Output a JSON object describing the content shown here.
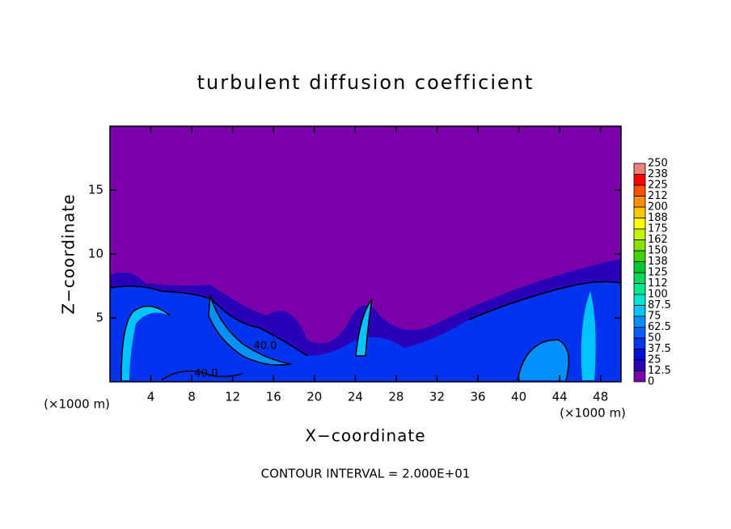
{
  "chart_data": {
    "type": "contour",
    "title": "turbulent diffusion coefficient",
    "xlabel": "X−coordinate",
    "ylabel": "Z−coordinate",
    "x_unit": "(×1000 m)",
    "y_unit": "(×1000 m)",
    "footnote": "CONTOUR INTERVAL = 2.000E+01",
    "contour_labels": [
      "40.0",
      "40.0"
    ],
    "xlim": [
      0,
      50
    ],
    "ylim": [
      0,
      20
    ],
    "xticks": [
      4,
      8,
      12,
      16,
      20,
      24,
      28,
      32,
      36,
      40,
      44,
      48
    ],
    "yticks": [
      5,
      10,
      15
    ],
    "levels": [
      0,
      12.5,
      25,
      37.5,
      50,
      62.5,
      75,
      87.5,
      100,
      {
        "value": 112.5,
        "label": "112"
      },
      125,
      {
        "value": 137.5,
        "label": "138"
      },
      150,
      {
        "value": 162.5,
        "label": "162"
      },
      175,
      {
        "value": 187.5,
        "label": "188"
      },
      200,
      {
        "value": 212.5,
        "label": "212"
      },
      225,
      {
        "value": 237.5,
        "label": "238"
      },
      250
    ],
    "colors": [
      "#7a00aa",
      "#2a00b8",
      "#0010d8",
      "#0034f0",
      "#0060ff",
      "#0090ff",
      "#00c4ff",
      "#00e6d0",
      "#00e890",
      "#00d860",
      "#00c830",
      "#40d400",
      "#88e000",
      "#c8f000",
      "#ffff00",
      "#ffc800",
      "#ff9000",
      "#ff5000",
      "#ff0000",
      "#f08080"
    ]
  }
}
